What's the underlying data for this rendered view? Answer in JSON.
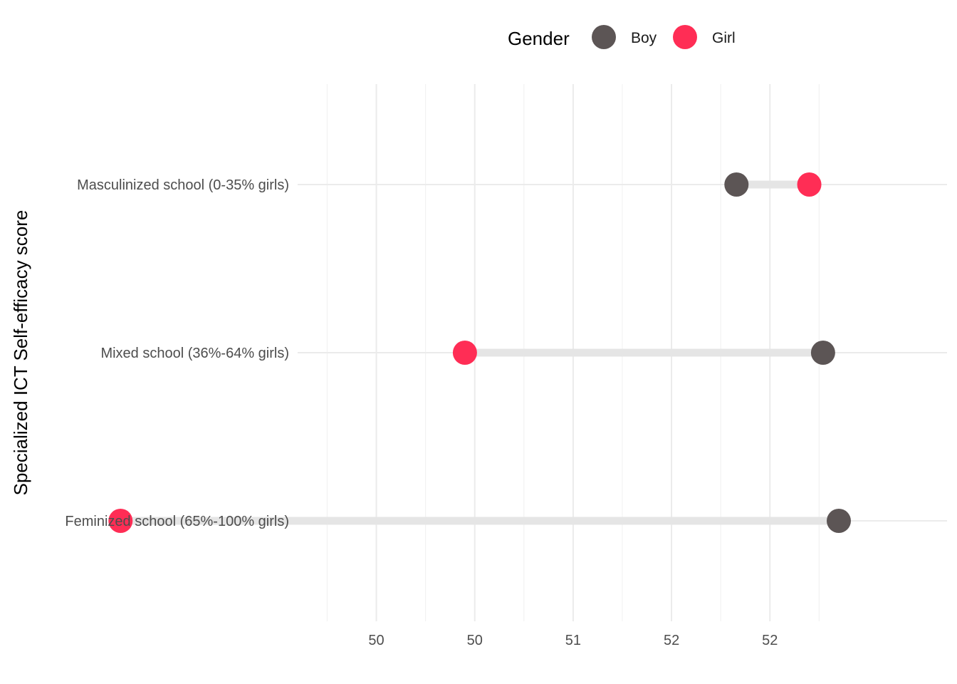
{
  "chart_data": {
    "type": "dumbbell",
    "ylabel": "Specialized ICT Self-efficacy score",
    "xlabel": "",
    "xlim": [
      49.6,
      52.9
    ],
    "x_ticks": [
      {
        "value": 50.0,
        "label": "50"
      },
      {
        "value": 50.5,
        "label": "50"
      },
      {
        "value": 51.0,
        "label": "51"
      },
      {
        "value": 51.5,
        "label": "52"
      },
      {
        "value": 52.0,
        "label": "52"
      }
    ],
    "x_minor_ticks": [
      49.75,
      50.25,
      50.75,
      51.25,
      51.75,
      52.25
    ],
    "categories": [
      "Masculinized school (0-35% girls)",
      "Mixed school (36%-64% girls)",
      "Feminized school (65%-100% girls)"
    ],
    "series": [
      {
        "name": "Boy",
        "color": "#5c5555",
        "values": [
          51.83,
          52.27,
          52.35
        ]
      },
      {
        "name": "Girl",
        "color": "#ff2d55",
        "values": [
          52.2,
          50.45,
          48.7
        ]
      }
    ],
    "legend": {
      "title": "Gender",
      "position": "top"
    },
    "segment_color": "#e5e5e5",
    "grid": true
  }
}
